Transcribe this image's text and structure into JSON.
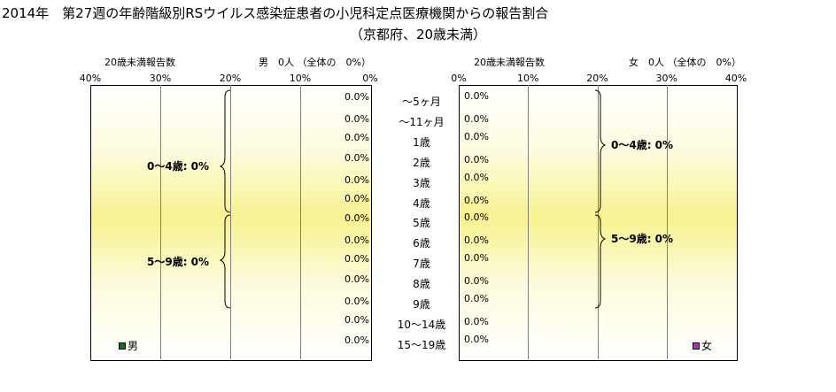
{
  "title": "2014年　第27週の年齢階級別RSウイルス感染症患者の小児科定点医療機関からの報告割合",
  "subtitle": "（京都府、20歳未満）",
  "chart_data": [
    {
      "type": "bar",
      "panel": "male",
      "header_left": "20歳未満報告数",
      "header_right": "男　0人 （全体の　0%）",
      "ticks": [
        "40%",
        "30%",
        "20%",
        "10%",
        "0%"
      ],
      "xlim": [
        0,
        40
      ],
      "direction": "right-to-left",
      "categories": [
        "～5ヶ月",
        "～11ヶ月",
        "1歳",
        "2歳",
        "3歳",
        "4歳",
        "5歳",
        "6歳",
        "7歳",
        "8歳",
        "9歳",
        "10～14歳",
        "15～19歳"
      ],
      "values": [
        0,
        0,
        0,
        0,
        0,
        0,
        0,
        0,
        0,
        0,
        0,
        0,
        0
      ],
      "value_labels": [
        "0.0%",
        "0.0%",
        "0.0%",
        "0.0%",
        "0.0%",
        "0.0%",
        "0.0%",
        "0.0%",
        "0.0%",
        "0.0%",
        "0.0%",
        "0.0%",
        "0.0%"
      ],
      "groups": [
        {
          "label": "0～4歳: 0%"
        },
        {
          "label": "5～9歳: 0%"
        }
      ],
      "legend": "男",
      "color": "#1a6b1a"
    },
    {
      "type": "bar",
      "panel": "female",
      "header_left": "20歳未満報告数",
      "header_right": "女　0人 （全体の　0%）",
      "ticks": [
        "0%",
        "10%",
        "20%",
        "30%",
        "40%"
      ],
      "xlim": [
        0,
        40
      ],
      "direction": "left-to-right",
      "categories": [
        "～5ヶ月",
        "～11ヶ月",
        "1歳",
        "2歳",
        "3歳",
        "4歳",
        "5歳",
        "6歳",
        "7歳",
        "8歳",
        "9歳",
        "10～14歳",
        "15～19歳"
      ],
      "values": [
        0,
        0,
        0,
        0,
        0,
        0,
        0,
        0,
        0,
        0,
        0,
        0,
        0
      ],
      "value_labels": [
        "0.0%",
        "0.0%",
        "0.0%",
        "0.0%",
        "0.0%",
        "0.0%",
        "0.0%",
        "0.0%",
        "0.0%",
        "0.0%",
        "0.0%",
        "0.0%",
        "0.0%"
      ],
      "groups": [
        {
          "label": "0～4歳: 0%"
        },
        {
          "label": "5～9歳: 0%"
        }
      ],
      "legend": "女",
      "color": "#b030b0"
    }
  ]
}
